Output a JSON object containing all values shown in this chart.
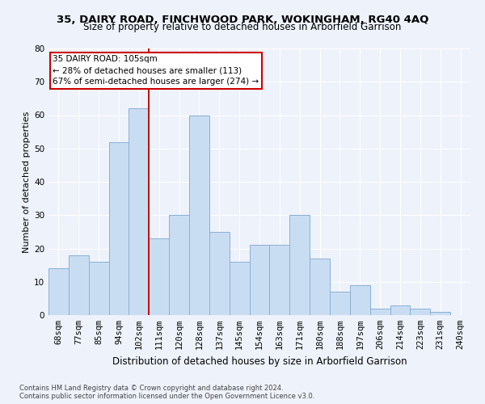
{
  "title1": "35, DAIRY ROAD, FINCHWOOD PARK, WOKINGHAM, RG40 4AQ",
  "title2": "Size of property relative to detached houses in Arborfield Garrison",
  "xlabel": "Distribution of detached houses by size in Arborfield Garrison",
  "ylabel": "Number of detached properties",
  "categories": [
    "68sqm",
    "77sqm",
    "85sqm",
    "94sqm",
    "102sqm",
    "111sqm",
    "120sqm",
    "128sqm",
    "137sqm",
    "145sqm",
    "154sqm",
    "163sqm",
    "171sqm",
    "180sqm",
    "188sqm",
    "197sqm",
    "206sqm",
    "214sqm",
    "223sqm",
    "231sqm",
    "240sqm"
  ],
  "values": [
    14,
    18,
    16,
    52,
    62,
    23,
    30,
    60,
    25,
    16,
    21,
    21,
    30,
    17,
    7,
    9,
    2,
    3,
    2,
    1,
    0
  ],
  "bar_color": "#c9ddf2",
  "bar_edge_color": "#8ab0d4",
  "vline_x": 4.5,
  "vline_color": "#cc0000",
  "annotation_text": "35 DAIRY ROAD: 105sqm\n← 28% of detached houses are smaller (113)\n67% of semi-detached houses are larger (274) →",
  "annotation_box_color": "white",
  "annotation_box_edge": "#cc0000",
  "ylim": [
    0,
    80
  ],
  "yticks": [
    0,
    10,
    20,
    30,
    40,
    50,
    60,
    70,
    80
  ],
  "footer1": "Contains HM Land Registry data © Crown copyright and database right 2024.",
  "footer2": "Contains public sector information licensed under the Open Government Licence v3.0.",
  "bg_color": "#eef2fb",
  "plot_bg_color": "#eef2fb",
  "title1_fontsize": 9.5,
  "title2_fontsize": 8.5,
  "xlabel_fontsize": 8.5,
  "ylabel_fontsize": 8.0,
  "tick_fontsize": 7.5,
  "annot_fontsize": 7.5,
  "footer_fontsize": 6.0
}
